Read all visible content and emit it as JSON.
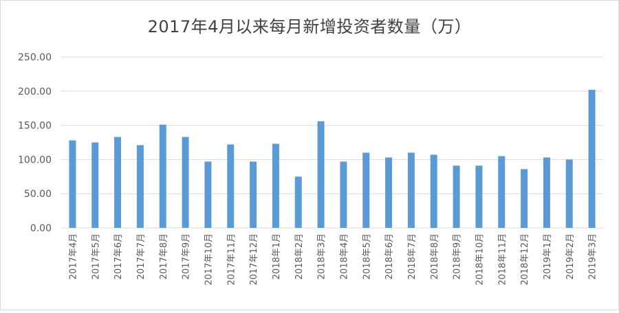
{
  "chart_data": {
    "type": "bar",
    "title": "2017年4月以来每月新增投资者数量（万）",
    "categories": [
      "2017年4月",
      "2017年5月",
      "2017年6月",
      "2017年7月",
      "2017年8月",
      "2017年9月",
      "2017年10月",
      "2017年11月",
      "2017年12月",
      "2018年1月",
      "2018年2月",
      "2018年3月",
      "2018年4月",
      "2018年5月",
      "2018年6月",
      "2018年7月",
      "2018年8月",
      "2018年9月",
      "2018年10月",
      "2018年11月",
      "2018年12月",
      "2019年1月",
      "2019年2月",
      "2019年3月"
    ],
    "values": [
      128,
      125,
      133,
      121,
      151,
      133,
      97,
      122,
      97,
      123,
      75,
      156,
      97,
      110,
      103,
      110,
      107,
      91,
      91,
      105,
      86,
      103,
      100,
      202
    ],
    "ylim": [
      0,
      250
    ],
    "yticks": [
      "0.00",
      "50.00",
      "100.00",
      "150.00",
      "200.00",
      "250.00"
    ],
    "grid": true,
    "color": "#5b9bd5"
  }
}
